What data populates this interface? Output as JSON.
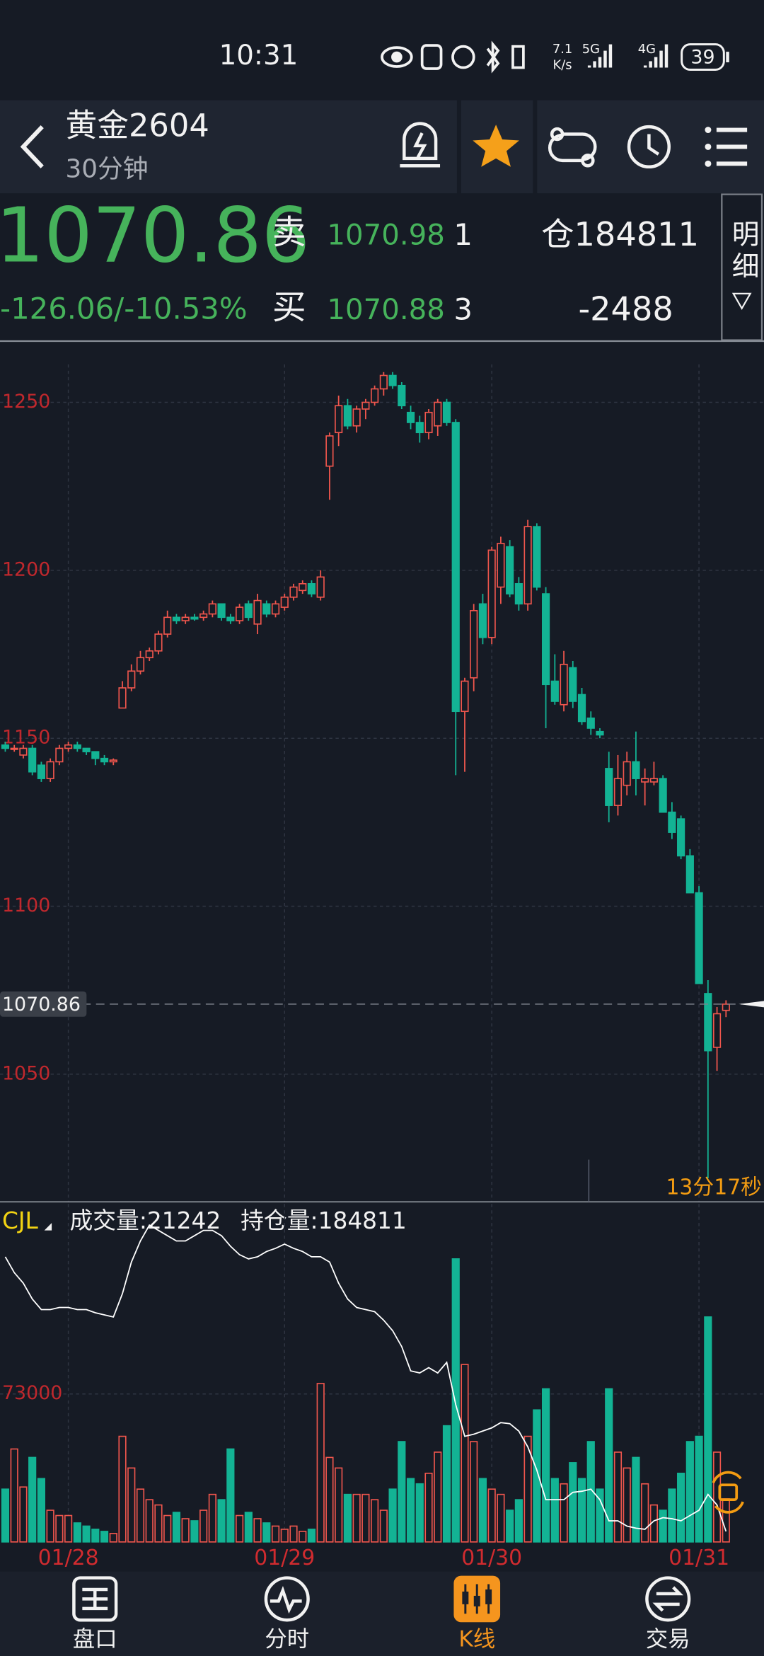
{
  "status_bar": {
    "time": "10:31",
    "net_speed": "7.1",
    "net_unit": "K/s",
    "signal_1": "5G",
    "signal_2": "4G",
    "battery": "39"
  },
  "header": {
    "title": "黄金2604",
    "period": "30分钟"
  },
  "quote": {
    "price": "1070.86",
    "change": "-126.06/-10.53%",
    "sell_label": "卖",
    "sell_price": "1070.98",
    "sell_qty": "1",
    "buy_label": "买",
    "buy_price": "1070.88",
    "buy_qty": "3",
    "position": "仓184811",
    "position_change": "-2488",
    "detail": "明细"
  },
  "chart_data": {
    "type": "candlestick",
    "categories": [
      null,
      null,
      null,
      null,
      null,
      null,
      null,
      "01/28",
      null,
      null,
      null,
      null,
      null,
      null,
      null,
      null,
      null,
      null,
      null,
      null,
      null,
      null,
      null,
      null,
      null,
      null,
      null,
      null,
      null,
      null,
      null,
      "01/29",
      null,
      null,
      null,
      null,
      null,
      null,
      null,
      null,
      null,
      null,
      null,
      null,
      null,
      null,
      null,
      null,
      null,
      null,
      null,
      null,
      null,
      null,
      "01/30",
      null,
      null,
      null,
      null,
      null,
      null,
      null,
      null,
      null,
      null,
      null,
      null,
      null,
      null,
      null,
      null,
      null,
      null,
      null,
      null,
      null,
      null,
      "01/31",
      null,
      null,
      null
    ],
    "candles": [
      [
        1148,
        1149,
        1146,
        1147
      ],
      [
        1147,
        1148,
        1146,
        1147
      ],
      [
        1145,
        1148,
        1144,
        1147
      ],
      [
        1147,
        1148,
        1139,
        1140
      ],
      [
        1142,
        1143,
        1137,
        1138
      ],
      [
        1138,
        1144,
        1137,
        1143
      ],
      [
        1143,
        1148,
        1142,
        1147
      ],
      [
        1147,
        1149,
        1146,
        1148
      ],
      [
        1148,
        1149,
        1146,
        1147
      ],
      [
        1147,
        1147,
        1145,
        1146
      ],
      [
        1146,
        1146,
        1142,
        1144
      ],
      [
        1144,
        1145,
        1142,
        1143
      ],
      [
        1143,
        1144,
        1142,
        1143.5
      ],
      [
        1159,
        1167,
        1159,
        1165
      ],
      [
        1165,
        1172,
        1164,
        1170
      ],
      [
        1170,
        1176,
        1169,
        1174
      ],
      [
        1174,
        1177,
        1173,
        1176
      ],
      [
        1176,
        1182,
        1175,
        1181
      ],
      [
        1181,
        1188,
        1180,
        1186
      ],
      [
        1186,
        1187,
        1184,
        1185
      ],
      [
        1185,
        1187,
        1184,
        1186
      ],
      [
        1186,
        1187,
        1185,
        1185.5
      ],
      [
        1186,
        1188,
        1185,
        1187
      ],
      [
        1187,
        1191,
        1186,
        1190
      ],
      [
        1190,
        1190,
        1185,
        1186
      ],
      [
        1186,
        1187,
        1184,
        1185
      ],
      [
        1185,
        1190,
        1184,
        1189
      ],
      [
        1190,
        1191,
        1185,
        1186
      ],
      [
        1184,
        1193,
        1181,
        1191
      ],
      [
        1190,
        1191,
        1186,
        1187
      ],
      [
        1187,
        1191,
        1186,
        1190
      ],
      [
        1189,
        1193,
        1188,
        1192
      ],
      [
        1192,
        1196,
        1191,
        1195
      ],
      [
        1194,
        1197,
        1193,
        1196
      ],
      [
        1196,
        1197,
        1192,
        1193
      ],
      [
        1192,
        1200,
        1191,
        1198
      ],
      [
        1231,
        1241,
        1221,
        1240
      ],
      [
        1241,
        1252,
        1237,
        1249
      ],
      [
        1249,
        1251,
        1242,
        1243
      ],
      [
        1243,
        1249,
        1241,
        1248
      ],
      [
        1248,
        1251,
        1245,
        1250
      ],
      [
        1250,
        1255,
        1249,
        1254
      ],
      [
        1254,
        1259,
        1252,
        1258
      ],
      [
        1258,
        1259,
        1254,
        1255
      ],
      [
        1255,
        1256,
        1248,
        1249
      ],
      [
        1247,
        1249,
        1242,
        1244
      ],
      [
        1244,
        1246,
        1238,
        1241
      ],
      [
        1241,
        1248,
        1239,
        1247
      ],
      [
        1243,
        1251,
        1240,
        1250
      ],
      [
        1250,
        1251,
        1243,
        1244
      ],
      [
        1244,
        1245,
        1139,
        1158
      ],
      [
        1158,
        1168,
        1140,
        1167
      ],
      [
        1168,
        1190,
        1164,
        1188
      ],
      [
        1190,
        1193,
        1178,
        1180
      ],
      [
        1180,
        1207,
        1178,
        1206
      ],
      [
        1195,
        1210,
        1190,
        1208
      ],
      [
        1207,
        1209,
        1192,
        1193
      ],
      [
        1196,
        1198,
        1188,
        1190
      ],
      [
        1190,
        1215,
        1188,
        1213
      ],
      [
        1213,
        1214,
        1194,
        1195
      ],
      [
        1193,
        1195,
        1153,
        1166
      ],
      [
        1167,
        1175,
        1160,
        1161
      ],
      [
        1160,
        1176,
        1158,
        1172
      ],
      [
        1171,
        1173,
        1159,
        1161
      ],
      [
        1163,
        1165,
        1154,
        1155
      ],
      [
        1156,
        1158,
        1151,
        1153
      ],
      [
        1152,
        1153,
        1150,
        1151
      ],
      [
        1141,
        1146,
        1125,
        1130
      ],
      [
        1130,
        1145,
        1127,
        1138
      ],
      [
        1136,
        1146,
        1133,
        1143
      ],
      [
        1143,
        1152,
        1133,
        1138
      ],
      [
        1137,
        1141,
        1130,
        1138
      ],
      [
        1137,
        1143,
        1136,
        1138
      ],
      [
        1138,
        1139,
        1128,
        1128
      ],
      [
        1128,
        1131,
        1120,
        1122
      ],
      [
        1126,
        1127,
        1114,
        1115
      ],
      [
        1115,
        1117,
        1104,
        1104
      ],
      [
        1104,
        1106,
        1077,
        1077
      ],
      [
        1074,
        1078,
        1019,
        1057
      ],
      [
        1058,
        1070,
        1051,
        1068
      ],
      [
        1069,
        1072,
        1067,
        1070.86
      ]
    ],
    "ylim": [
      1012,
      1261.3
    ],
    "yticks": [
      1050,
      1100,
      1150,
      1200,
      1250
    ],
    "grid": true,
    "last_price": 1070.86,
    "countdown": "13分17秒",
    "up_color": "#f0564d",
    "down_color": "#13b394"
  },
  "volume_chart": {
    "type": "bar",
    "indicator": "CJL",
    "volume_label": "成交量:21242",
    "oi_label": "持仓量:184811",
    "volumes": [
      26050,
      45848,
      27092,
      41680,
      31260,
      15630,
      13025,
      13025,
      9378,
      7815,
      6252,
      5210,
      4168,
      52100,
      36470,
      26050,
      20840,
      18235,
      13025,
      14588,
      11462,
      10420,
      15630,
      23445,
      20840,
      45848,
      13025,
      14588,
      11462,
      9378,
      7815,
      6252,
      7815,
      5210,
      6252,
      78150,
      41680,
      36470,
      23445,
      23445,
      23445,
      20840,
      15630,
      26050,
      49495,
      31260,
      28655,
      33865,
      44285,
      57310,
      139628,
      87528,
      49495,
      31260,
      26050,
      23445,
      15630,
      20840,
      52100,
      65125,
      75545,
      31260,
      28655,
      39075,
      31260,
      49495,
      26050,
      75545,
      44285,
      36470,
      41680,
      28655,
      18235,
      15630,
      26050,
      33865,
      49495,
      52100,
      110973,
      44285,
      21242
    ],
    "ylim": [
      0,
      166700
    ],
    "yticks": [
      73000
    ],
    "open_interest": [
      210811,
      209311,
      208311,
      206811,
      205811,
      205811,
      206011,
      206011,
      205811,
      205811,
      205511,
      205311,
      205111,
      207311,
      210311,
      212311,
      213811,
      213311,
      212811,
      212311,
      212311,
      212811,
      213311,
      213311,
      212811,
      211811,
      211011,
      210611,
      210811,
      211311,
      211611,
      212011,
      211611,
      211311,
      210811,
      210811,
      210311,
      208311,
      206811,
      206011,
      205811,
      205611,
      204811,
      203811,
      202311,
      200011,
      199811,
      200311,
      199811,
      200811,
      196811,
      193811,
      194011,
      194311,
      194611,
      195111,
      195011,
      194311,
      192811,
      190611,
      187811,
      187811,
      187811,
      188511,
      188611,
      188811,
      187811,
      185811,
      185811,
      185311,
      185111,
      185011,
      185811,
      186111,
      186011,
      185811,
      186311,
      186811,
      188311,
      187311,
      184811
    ],
    "oi_lim": [
      183811,
      215811
    ],
    "line_color": "#ffffff"
  },
  "tabs": [
    "盘口",
    "分时",
    "K线",
    "交易"
  ],
  "active_tab": 2
}
